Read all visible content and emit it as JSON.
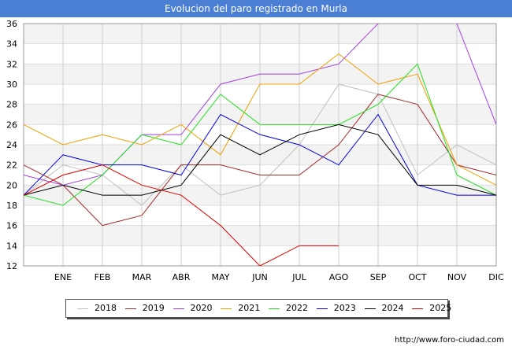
{
  "title": "Evolucion del paro registrado en Murla",
  "source": "http://www.foro-ciudad.com",
  "chart_data": {
    "type": "line",
    "title": "Evolucion del paro registrado en Murla",
    "x": [
      "",
      "ENE",
      "FEB",
      "MAR",
      "ABR",
      "MAY",
      "JUN",
      "JUL",
      "AGO",
      "SEP",
      "OCT",
      "NOV",
      "DIC"
    ],
    "ylim": [
      12,
      36
    ],
    "yticks": [
      12,
      14,
      16,
      18,
      20,
      22,
      24,
      26,
      28,
      30,
      32,
      34,
      36
    ],
    "grid": true,
    "legend_position": "bottom",
    "series": [
      {
        "name": "2018",
        "color": "#c0c0c0",
        "values": [
          19,
          22,
          21,
          18,
          22,
          19,
          20,
          24,
          30,
          29,
          21,
          24,
          22
        ]
      },
      {
        "name": "2019",
        "color": "#a52a2a",
        "values": [
          22,
          20,
          16,
          17,
          22,
          22,
          21,
          21,
          24,
          29,
          28,
          22,
          21
        ]
      },
      {
        "name": "2020",
        "color": "#a040e0",
        "values": [
          21,
          20,
          21,
          25,
          25,
          30,
          31,
          31,
          32,
          36,
          null,
          36,
          26
        ]
      },
      {
        "name": "2021",
        "color": "#f0a000",
        "values": [
          26,
          24,
          25,
          24,
          26,
          23,
          30,
          30,
          33,
          30,
          31,
          22,
          20
        ]
      },
      {
        "name": "2022",
        "color": "#20e020",
        "values": [
          19,
          18,
          21,
          25,
          24,
          29,
          26,
          26,
          26,
          28,
          32,
          21,
          19
        ]
      },
      {
        "name": "2023",
        "color": "#0000e0",
        "values": [
          19,
          23,
          22,
          22,
          21,
          27,
          25,
          24,
          22,
          27,
          20,
          19,
          19
        ]
      },
      {
        "name": "2024",
        "color": "#000000",
        "values": [
          19,
          20,
          19,
          19,
          20,
          25,
          23,
          25,
          26,
          25,
          20,
          20,
          19
        ]
      },
      {
        "name": "2025",
        "color": "#e00000",
        "values": [
          19,
          21,
          22,
          20,
          19,
          16,
          12,
          14,
          14,
          null,
          null,
          null,
          null
        ]
      }
    ]
  }
}
